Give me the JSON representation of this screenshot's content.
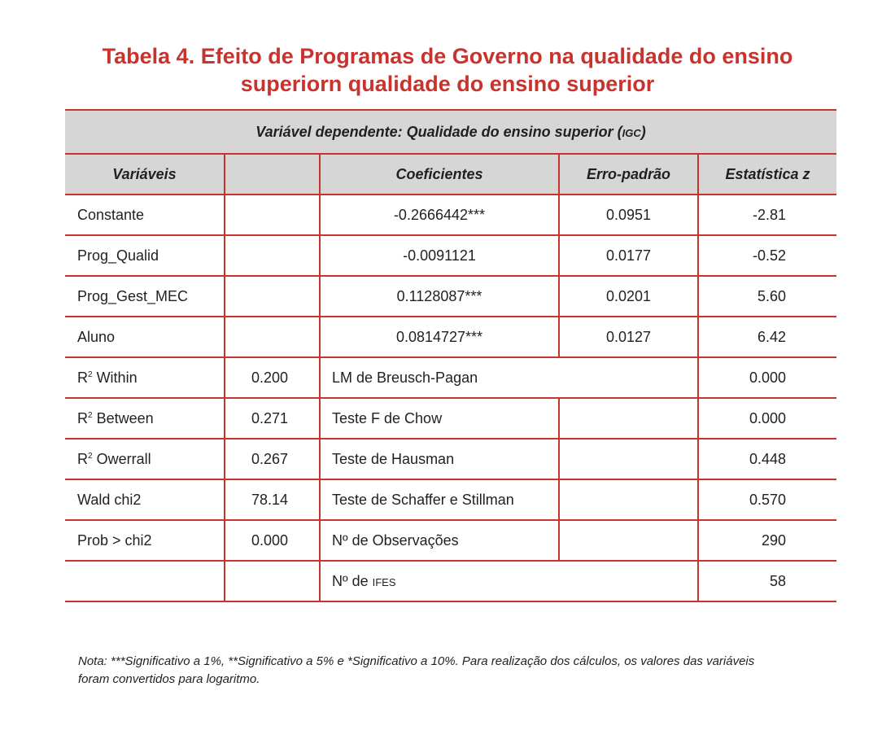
{
  "title": {
    "line1": "Tabela 4. Efeito de Programas de Governo na qualidade do ensino",
    "line2": "superiorn qualidade do ensino superior"
  },
  "table": {
    "caption_prefix": "Variável dependente: Qualidade do ensino superior (",
    "caption_abbr": "igc",
    "caption_suffix": ")",
    "headers": {
      "variaveis": "Variáveis",
      "coeficientes": "Coeficientes",
      "erro_padrao": "Erro-padrão",
      "estatistica_z": "Estatística z"
    },
    "coef_rows": [
      {
        "var": "Constante",
        "coef": "-0.2666442***",
        "se": "0.0951",
        "z": "-2.81"
      },
      {
        "var": "Prog_Qualid",
        "coef": "-0.0091121",
        "se": "0.0177",
        "z": "-0.52"
      },
      {
        "var": "Prog_Gest_MEC",
        "coef": "0.1128087***",
        "se": "0.0201",
        "z": "5.60"
      },
      {
        "var": "Aluno",
        "coef": "0.0814727***",
        "se": "0.0127",
        "z": "6.42"
      }
    ],
    "stat_rows": [
      {
        "base": "R",
        "sup": "2",
        "rest": " Within",
        "value": "0.200",
        "test": "LM de Breusch-Pagan",
        "test_value": "0.000"
      },
      {
        "base": "R",
        "sup": "2",
        "rest": " Between",
        "value": "0.271",
        "test": "Teste F de Chow",
        "test_value": "0.000"
      },
      {
        "base": "R",
        "sup": "2",
        "rest": " Owerrall",
        "value": "0.267",
        "test": "Teste de Hausman",
        "test_value": "0.448"
      },
      {
        "label": "Wald chi2",
        "value": "78.14",
        "test": "Teste de Schaffer e Stillman",
        "test_value": "0.570"
      },
      {
        "label": "Prob > chi2",
        "value": "0.000",
        "test": "Nº de Observações",
        "test_value": "290"
      }
    ],
    "last_row": {
      "test_prefix": "Nº de ",
      "test_abbr": "ifes",
      "test_value": "58"
    }
  },
  "note": {
    "line1": "Nota: ***Significativo a 1%, **Significativo a 5% e *Significativo a 10%. Para realização dos cálculos, os valores das variáveis",
    "line2": "foram convertidos para logaritmo."
  }
}
